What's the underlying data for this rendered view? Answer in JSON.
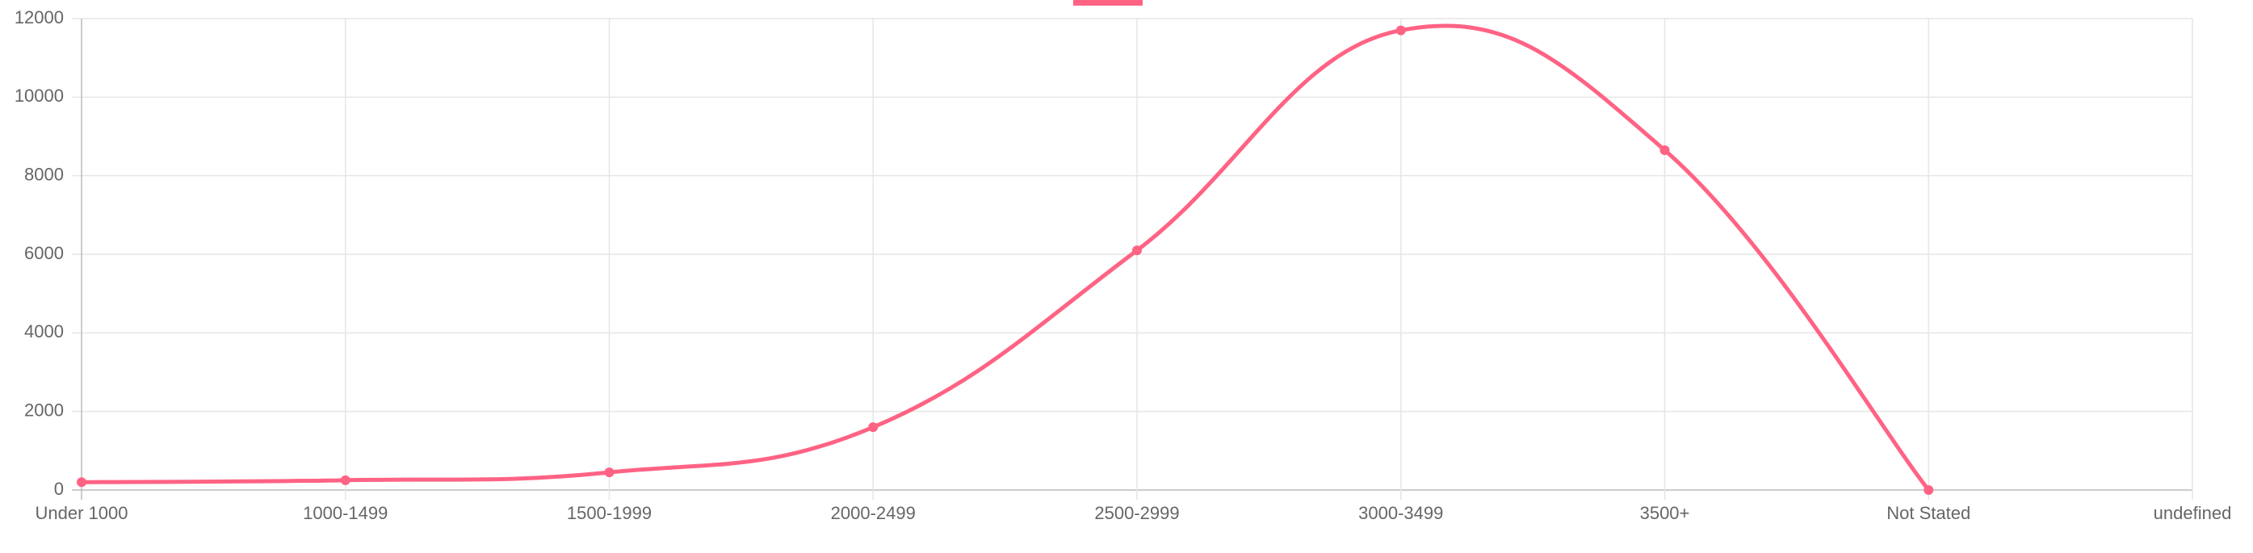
{
  "chart_data": {
    "type": "line",
    "categories": [
      "Under 1000",
      "1000-1499",
      "1500-1999",
      "2000-2499",
      "2500-2999",
      "3000-3499",
      "3500+",
      "Not Stated",
      "undefined"
    ],
    "series": [
      {
        "color": "#ff6384",
        "values": [
          200,
          250,
          450,
          1600,
          6100,
          11700,
          8650,
          0,
          null
        ]
      }
    ],
    "ylim": [
      0,
      12000
    ],
    "yticks": [
      0,
      2000,
      4000,
      6000,
      8000,
      10000,
      12000
    ],
    "grid": true
  }
}
